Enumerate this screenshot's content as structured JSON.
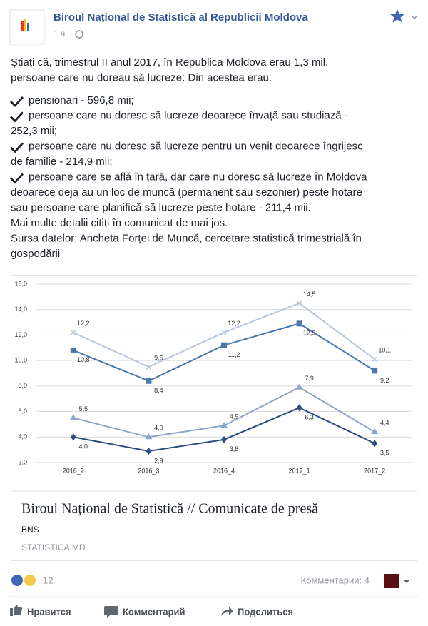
{
  "post": {
    "author": "Biroul Național de Statistică al Republicii Moldova",
    "time": "1 ч",
    "intro": [
      "Știați că, trimestrul II anul 2017, în Republica Moldova erau 1,3 mil.",
      "persoane care nu doreau să lucreze: Din acestea erau:"
    ],
    "items": [
      [
        "pensionari - 596,8 mii;"
      ],
      [
        "persoane care nu doresc să lucreze deoarece învață sau studiază -",
        "252,3 mii;"
      ],
      [
        "persoane care nu doresc să lucreze pentru un venit deoarece îngrijesc",
        "de familie - 214,9 mii;"
      ],
      [
        "persoane care se află în țară, dar care nu doresc să lucreze în Moldova",
        "deoarece deja au un loc de muncă (permanent sau sezonier) peste hotare",
        "sau persoane care planifică să lucreze peste hotare - 211,4 mii."
      ]
    ],
    "outro": [
      "Mai multe detalii citiți în comunicat de mai jos.",
      "Sursa datelor: Ancheta Forței de Muncă, cercetare statistică trimestrială în",
      "gospodării"
    ]
  },
  "chart_data": {
    "type": "line",
    "categories": [
      "2016_2",
      "2016_3",
      "2016_4",
      "2017_1",
      "2017_2"
    ],
    "series": [
      {
        "color": "#b9c7dc",
        "marker": "x",
        "values": [
          12.2,
          9.5,
          12.2,
          14.5,
          10.1
        ],
        "value_labels": [
          "12,2",
          "9,5",
          "12,2",
          "14,5",
          "10,1"
        ]
      },
      {
        "color": "#4a78ad",
        "marker": "square",
        "values": [
          10.8,
          8.4,
          11.2,
          12.9,
          9.2
        ],
        "value_labels": [
          "10,8",
          "8,4",
          "11,2",
          "12,9",
          "9,2"
        ]
      },
      {
        "color": "#8ea4c8",
        "marker": "triangle",
        "values": [
          5.5,
          4.0,
          4.9,
          7.9,
          4.4
        ],
        "value_labels": [
          "5,5",
          "4,0",
          "4,9",
          "7,9",
          "4,4"
        ]
      },
      {
        "color": "#2d4d7f",
        "marker": "diamond",
        "values": [
          4.0,
          2.9,
          3.8,
          6.3,
          3.5
        ],
        "value_labels": [
          "4,0",
          "2,9",
          "3,8",
          "6,3",
          "3,5"
        ]
      }
    ],
    "ylim": [
      2,
      16
    ],
    "yticks": [
      {
        "value": 2,
        "label": "2,0"
      },
      {
        "value": 4,
        "label": "4,0"
      },
      {
        "value": 6,
        "label": "6,0"
      },
      {
        "value": 8,
        "label": "8,0"
      },
      {
        "value": 10,
        "label": "10,0"
      },
      {
        "value": 12,
        "label": "12,0"
      },
      {
        "value": 14,
        "label": "14,0"
      },
      {
        "value": 16,
        "label": "16,0"
      }
    ],
    "grid": true
  },
  "link": {
    "title": "Biroul Național de Statistică // Comunicate de presă",
    "source": "BNS",
    "domain": "STATISTICA.MD"
  },
  "footer": {
    "reactions": "12",
    "comments": "Комментарии: 4",
    "like": "Нравится",
    "comment": "Комментарий",
    "share": "Поделиться"
  }
}
